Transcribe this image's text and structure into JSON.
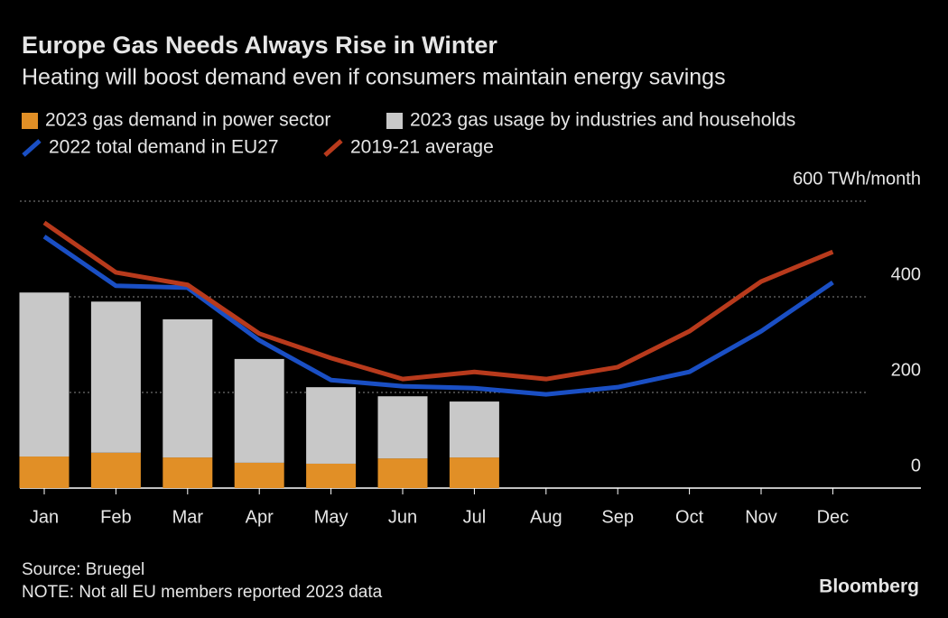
{
  "chart_data": {
    "type": "bar",
    "title": "Europe Gas Needs Always Rise in Winter",
    "subtitle": "Heating will boost demand even if consumers maintain energy savings",
    "categories": [
      "Jan",
      "Feb",
      "Mar",
      "Apr",
      "May",
      "Jun",
      "Jul",
      "Aug",
      "Sep",
      "Oct",
      "Nov",
      "Dec"
    ],
    "series": [
      {
        "name": "2023 gas demand in power sector",
        "type": "bar",
        "color": "#e18f26",
        "values": [
          66,
          74,
          64,
          53,
          51,
          62,
          64,
          null,
          null,
          null,
          null,
          null
        ]
      },
      {
        "name": "2023 gas usage by industries and households",
        "type": "bar",
        "color": "#c8c8c8",
        "values": [
          343,
          316,
          289,
          217,
          160,
          130,
          117,
          null,
          null,
          null,
          null,
          null
        ]
      },
      {
        "name": "2022 total demand in EU27",
        "type": "line",
        "color": "#1a4fc4",
        "values": [
          526,
          423,
          419,
          309,
          226,
          213,
          209,
          196,
          211,
          243,
          328,
          430
        ]
      },
      {
        "name": "2019-21 average",
        "type": "line",
        "color": "#b83a1c",
        "values": [
          555,
          451,
          425,
          323,
          272,
          228,
          243,
          228,
          253,
          328,
          432,
          494
        ]
      }
    ],
    "stacked": true,
    "ylim": [
      0,
      600
    ],
    "yticks": [
      0,
      200,
      400,
      {
        "value": 600,
        "label": "600 TWh/month"
      }
    ],
    "grid": true,
    "source": "Source: Bruegel",
    "note": "NOTE: Not all EU members reported 2023 data",
    "brand": "Bloomberg"
  }
}
